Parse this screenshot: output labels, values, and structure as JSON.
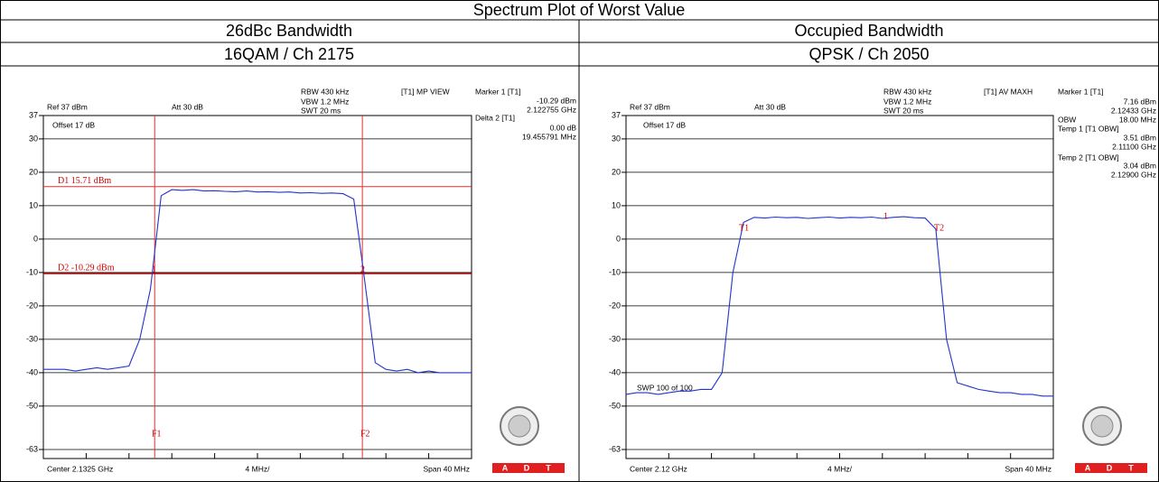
{
  "table": {
    "title": "Spectrum Plot of Worst Value",
    "headers": [
      "26dBc Bandwidth",
      "Occupied Bandwidth"
    ],
    "subheaders": [
      "16QAM / Ch 2175",
      "QPSK / Ch 2050"
    ]
  },
  "chart_data": [
    {
      "type": "line",
      "ylim": [
        -63,
        37
      ],
      "yticks": [
        37,
        30,
        20,
        10,
        0,
        -10,
        -20,
        -30,
        -40,
        -50,
        -63
      ],
      "grid": true,
      "series": [
        {
          "color": "#2233cc",
          "values": [
            -39,
            -39,
            -39,
            -39.5,
            -39,
            -38.5,
            -39,
            -38.5,
            -38,
            -30,
            -15,
            13,
            14.8,
            14.6,
            14.8,
            14.4,
            14.5,
            14.3,
            14.2,
            14.4,
            14.1,
            14.2,
            14,
            14.1,
            13.8,
            13.9,
            13.7,
            13.8,
            13.6,
            12,
            -12,
            -37,
            -39,
            -39.5,
            -39,
            -40,
            -39.5,
            -40,
            -40,
            -40,
            -40
          ]
        }
      ],
      "display_lines": [
        {
          "label": "D1 15.71 dBm",
          "value": 15.71
        },
        {
          "label": "D2 -10.29 dBm",
          "value": -10.29
        }
      ],
      "settings": [
        "Ref 37 dBm",
        "Att 30 dB",
        "RBW 430 kHz",
        "VBW 1.2 MHz",
        "SWT 20 ms",
        "[T1] MP VIEW",
        "Offset 17 dB"
      ],
      "marker_labels": [
        "Marker 1 [T1]",
        "Delta 2 [T1]"
      ],
      "marker_values": [
        "-10.29 dBm",
        "2.122755 GHz",
        "0.00 dB",
        "19.455791 MHz"
      ],
      "trace_labels": [
        "1",
        "2",
        "F1",
        "F2"
      ],
      "footer": [
        "Center 2.1325 GHz",
        "4 MHz/",
        "Span 40 MHz"
      ],
      "logo": [
        "A",
        "D",
        "T"
      ]
    },
    {
      "type": "line",
      "ylim": [
        -63,
        37
      ],
      "yticks": [
        37,
        30,
        20,
        10,
        0,
        -10,
        -20,
        -30,
        -40,
        -50,
        -63
      ],
      "grid": true,
      "series": [
        {
          "color": "#2233cc",
          "values": [
            -46.5,
            -46,
            -46,
            -46.5,
            -46,
            -45.5,
            -45.5,
            -45,
            -45,
            -40,
            -10,
            5,
            6.5,
            6.3,
            6.6,
            6.4,
            6.5,
            6.2,
            6.4,
            6.6,
            6.3,
            6.5,
            6.4,
            6.6,
            6.2,
            6.5,
            6.7,
            6.4,
            6.3,
            3,
            -30,
            -43,
            -44,
            -45,
            -45.5,
            -46,
            -46,
            -46.5,
            -46.5,
            -47,
            -47
          ]
        }
      ],
      "display_lines": [],
      "settings": [
        "Ref 37 dBm",
        "Att 30 dB",
        "RBW 430 kHz",
        "VBW 1.2 MHz",
        "SWT 20 ms",
        "[T1] AV MAXH",
        "Offset 17 dB",
        "SWP 100 of 100"
      ],
      "marker_labels": [
        "Marker 1 [T1]",
        "OBW",
        "Temp 1 [T1 OBW]",
        "Temp 2 [T1 OBW]"
      ],
      "marker_values": [
        "7.16 dBm",
        "2.12433 GHz",
        "18.00 MHz",
        "3.51 dBm",
        "2.11100 GHz",
        "3.04 dBm",
        "2.12900 GHz"
      ],
      "trace_labels": [
        "T1",
        "1",
        "T2"
      ],
      "footer": [
        "Center 2.12 GHz",
        "4 MHz/",
        "Span 40 MHz"
      ],
      "logo": [
        "A",
        "D",
        "T"
      ]
    }
  ]
}
